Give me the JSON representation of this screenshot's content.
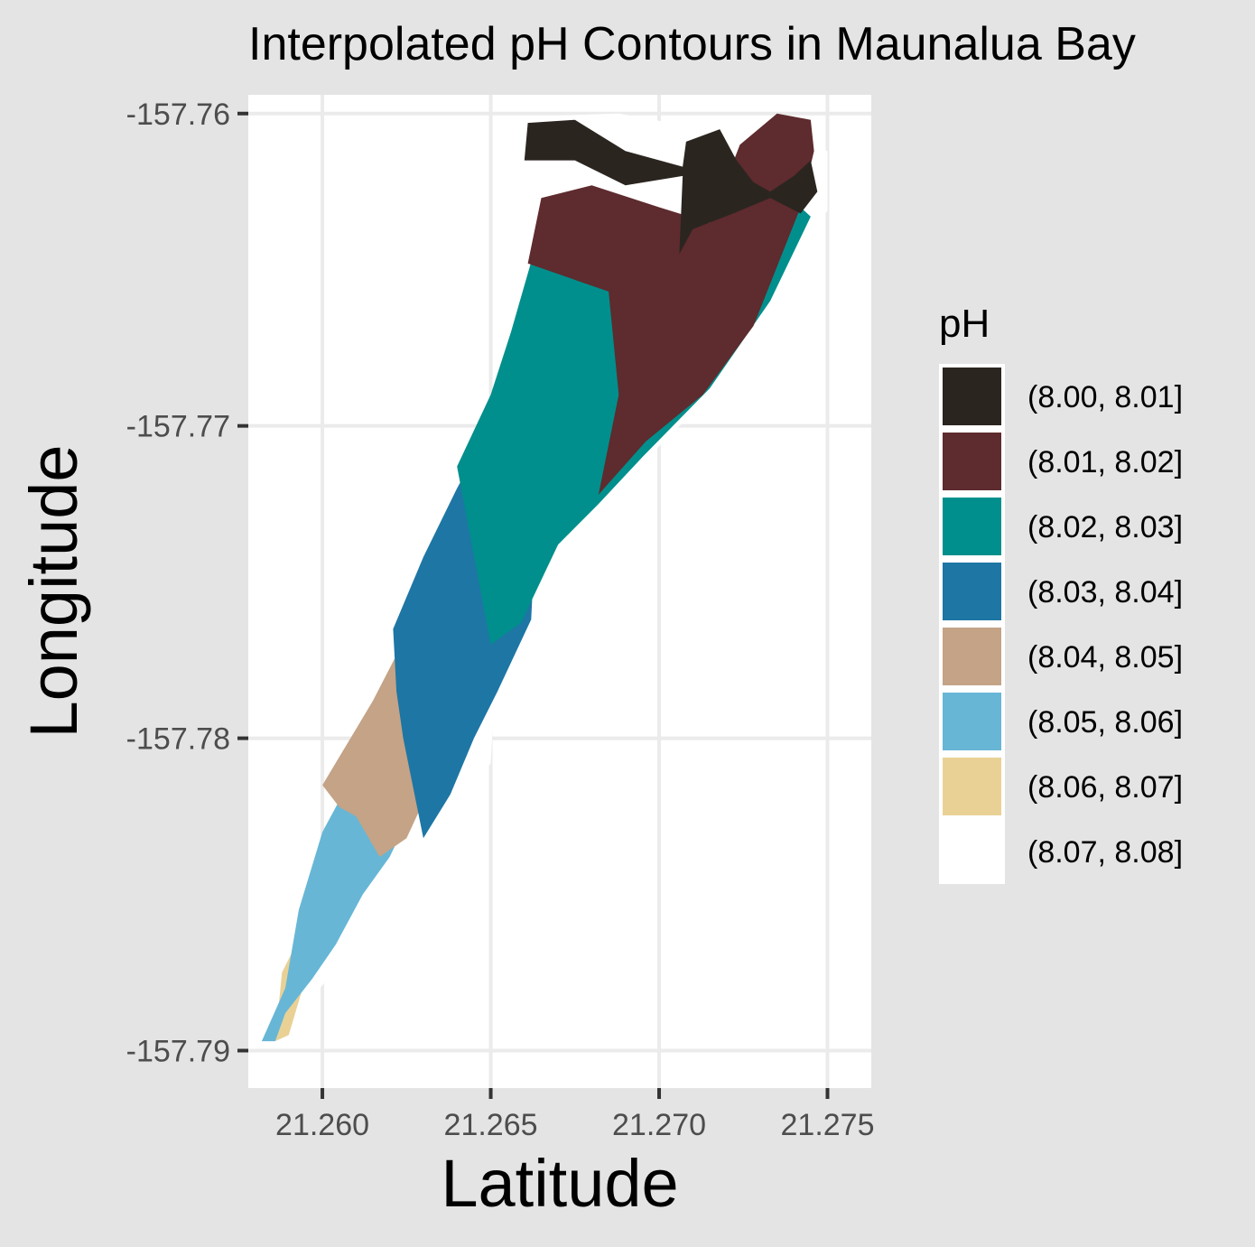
{
  "chart_data": {
    "type": "contour",
    "title": "Interpolated pH Contours in Maunalua Bay",
    "xlabel": "Latitude",
    "ylabel": "Longitude",
    "xlim": [
      21.2578,
      21.2763
    ],
    "ylim": [
      -157.7912,
      -157.7594
    ],
    "x_ticks": [
      21.26,
      21.265,
      21.27,
      21.275
    ],
    "x_tick_labels": [
      "21.260",
      "21.265",
      "21.270",
      "21.275"
    ],
    "y_ticks": [
      -157.76,
      -157.77,
      -157.78,
      -157.79
    ],
    "y_tick_labels": [
      "-157.76",
      "-157.77",
      "-157.78",
      "-157.79"
    ],
    "grid": true,
    "legend": {
      "title": "pH",
      "position": "right",
      "entries": [
        {
          "label": "(8.00, 8.01]",
          "color": "#2b2520"
        },
        {
          "label": "(8.01, 8.02]",
          "color": "#5e2b2e"
        },
        {
          "label": "(8.02, 8.03]",
          "color": "#008f8c"
        },
        {
          "label": "(8.03, 8.04]",
          "color": "#1e76a4"
        },
        {
          "label": "(8.04, 8.05]",
          "color": "#c4a386"
        },
        {
          "label": "(8.05, 8.06]",
          "color": "#67b6d6"
        },
        {
          "label": "(8.06, 8.07]",
          "color": "#e9d196"
        },
        {
          "label": "(8.07, 8.08]",
          "color": "#ffffff"
        }
      ]
    },
    "regions": [
      {
        "band": "(8.07, 8.08]",
        "polygon": [
          [
            21.266,
            -157.7601
          ],
          [
            21.2688,
            -157.76
          ],
          [
            21.275,
            -157.7612
          ],
          [
            21.275,
            -157.7631
          ],
          [
            21.272,
            -157.7685
          ],
          [
            21.268,
            -157.7728
          ],
          [
            21.262,
            -157.7795
          ],
          [
            21.2585,
            -157.789
          ],
          [
            21.2582,
            -157.7897
          ],
          [
            21.2593,
            -157.7888
          ],
          [
            21.2615,
            -157.786
          ],
          [
            21.265,
            -157.7808
          ],
          [
            21.2659,
            -157.763
          ]
        ]
      },
      {
        "band": "(8.06, 8.07]",
        "polygon": [
          [
            21.2586,
            -157.7897
          ],
          [
            21.2588,
            -157.7875
          ],
          [
            21.2595,
            -157.786
          ],
          [
            21.2604,
            -157.7845
          ],
          [
            21.26,
            -157.7862
          ],
          [
            21.2595,
            -157.7877
          ],
          [
            21.259,
            -157.7895
          ]
        ]
      },
      {
        "band": "(8.05, 8.06]",
        "polygon": [
          [
            21.2582,
            -157.7897
          ],
          [
            21.2589,
            -157.788
          ],
          [
            21.2593,
            -157.7855
          ],
          [
            21.26,
            -157.783
          ],
          [
            21.2615,
            -157.78
          ],
          [
            21.2627,
            -157.7778
          ],
          [
            21.263,
            -157.779
          ],
          [
            21.2628,
            -157.782
          ],
          [
            21.262,
            -157.7838
          ],
          [
            21.2612,
            -157.785
          ],
          [
            21.2604,
            -157.7866
          ],
          [
            21.2597,
            -157.7877
          ],
          [
            21.2589,
            -157.7888
          ],
          [
            21.2586,
            -157.7897
          ]
        ]
      },
      {
        "band": "(8.04, 8.05]",
        "polygon": [
          [
            21.26,
            -157.7815
          ],
          [
            21.2615,
            -157.7788
          ],
          [
            21.2626,
            -157.7765
          ],
          [
            21.2638,
            -157.7735
          ],
          [
            21.265,
            -157.7708
          ],
          [
            21.2655,
            -157.7686
          ],
          [
            21.2654,
            -157.772
          ],
          [
            21.2649,
            -157.7775
          ],
          [
            21.2645,
            -157.7795
          ],
          [
            21.2637,
            -157.7808
          ],
          [
            21.2631,
            -157.7818
          ],
          [
            21.2625,
            -157.7832
          ],
          [
            21.2617,
            -157.7838
          ],
          [
            21.261,
            -157.7825
          ],
          [
            21.2605,
            -157.7822
          ]
        ]
      },
      {
        "band": "(8.03, 8.04]",
        "polygon": [
          [
            21.2621,
            -157.7765
          ],
          [
            21.263,
            -157.7742
          ],
          [
            21.264,
            -157.772
          ],
          [
            21.265,
            -157.77
          ],
          [
            21.2657,
            -157.7675
          ],
          [
            21.2662,
            -157.766
          ],
          [
            21.2666,
            -157.7642
          ],
          [
            21.267,
            -157.7635
          ],
          [
            21.2668,
            -157.7655
          ],
          [
            21.2665,
            -157.77
          ],
          [
            21.2663,
            -157.774
          ],
          [
            21.2662,
            -157.7762
          ],
          [
            21.2652,
            -157.7785
          ],
          [
            21.2645,
            -157.78
          ],
          [
            21.2638,
            -157.7818
          ],
          [
            21.263,
            -157.7832
          ],
          [
            21.2624,
            -157.78
          ],
          [
            21.2622,
            -157.7785
          ]
        ]
      },
      {
        "band": "(8.02, 8.03]",
        "polygon": [
          [
            21.264,
            -157.7713
          ],
          [
            21.265,
            -157.769
          ],
          [
            21.2656,
            -157.767
          ],
          [
            21.266,
            -157.7655
          ],
          [
            21.2664,
            -157.764
          ],
          [
            21.2668,
            -157.7632
          ],
          [
            21.2675,
            -157.763
          ],
          [
            21.2684,
            -157.7635
          ],
          [
            21.2692,
            -157.764
          ],
          [
            21.27,
            -157.7643
          ],
          [
            21.2713,
            -157.7643
          ],
          [
            21.2725,
            -157.764
          ],
          [
            21.274,
            -157.7628
          ],
          [
            21.2745,
            -157.7633
          ],
          [
            21.2733,
            -157.766
          ],
          [
            21.2715,
            -157.7688
          ],
          [
            21.2695,
            -157.771
          ],
          [
            21.2682,
            -157.7725
          ],
          [
            21.267,
            -157.7738
          ],
          [
            21.2659,
            -157.7763
          ],
          [
            21.265,
            -157.777
          ]
        ]
      },
      {
        "band": "(8.01, 8.02]",
        "polygon": [
          [
            21.2661,
            -157.7648
          ],
          [
            21.2665,
            -157.7627
          ],
          [
            21.268,
            -157.7623
          ],
          [
            21.27,
            -157.763
          ],
          [
            21.2715,
            -157.7635
          ],
          [
            21.2724,
            -157.761
          ],
          [
            21.2735,
            -157.76
          ],
          [
            21.2745,
            -157.7602
          ],
          [
            21.2746,
            -157.7612
          ],
          [
            21.2742,
            -157.763
          ],
          [
            21.2728,
            -157.7668
          ],
          [
            21.2713,
            -157.769
          ],
          [
            21.2696,
            -157.7705
          ],
          [
            21.2682,
            -157.7722
          ],
          [
            21.2688,
            -157.769
          ],
          [
            21.2685,
            -157.7657
          ]
        ]
      },
      {
        "band": "(8.00, 8.01]",
        "polygon": [
          [
            21.2661,
            -157.7603
          ],
          [
            21.2675,
            -157.7602
          ],
          [
            21.269,
            -157.7612
          ],
          [
            21.2707,
            -157.7617
          ],
          [
            21.2708,
            -157.7609
          ],
          [
            21.2718,
            -157.7605
          ],
          [
            21.2723,
            -157.7615
          ],
          [
            21.2728,
            -157.7622
          ],
          [
            21.2733,
            -157.7625
          ],
          [
            21.274,
            -157.762
          ],
          [
            21.2745,
            -157.7615
          ],
          [
            21.2747,
            -157.7625
          ],
          [
            21.2742,
            -157.7632
          ],
          [
            21.2733,
            -157.7627
          ],
          [
            21.2722,
            -157.7632
          ],
          [
            21.271,
            -157.7637
          ],
          [
            21.2706,
            -157.7645
          ],
          [
            21.2707,
            -157.762
          ],
          [
            21.269,
            -157.7623
          ],
          [
            21.2675,
            -157.7615
          ],
          [
            21.266,
            -157.7615
          ]
        ]
      }
    ]
  }
}
